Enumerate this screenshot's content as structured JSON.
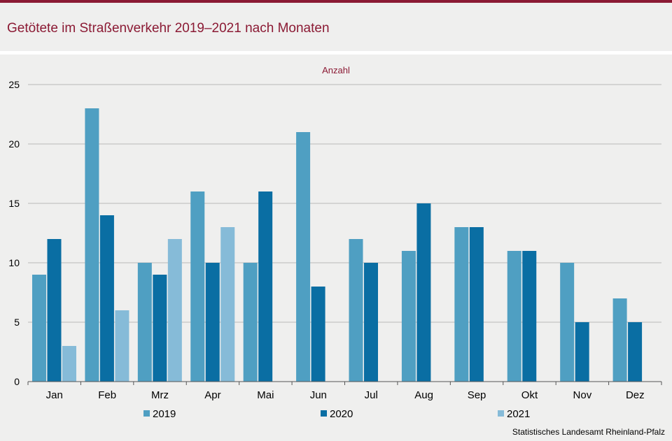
{
  "header": {
    "title": "Getötete im Straßenverkehr 2019–2021 nach Monaten"
  },
  "footer": {
    "source": "Statistisches Landesamt Rheinland-Pfalz"
  },
  "colors": {
    "accent": "#8b1a34",
    "series_2019": "#4f9fc2",
    "series_2020": "#0a6ea3",
    "series_2021": "#86bbd8"
  },
  "chart_data": {
    "type": "bar",
    "title": "Getötete im Straßenverkehr 2019–2021 nach Monaten",
    "ylabel": "Anzahl",
    "xlabel": "",
    "ylim": [
      0,
      25
    ],
    "yticks": [
      0,
      5,
      10,
      15,
      20,
      25
    ],
    "grid": true,
    "legend": "bottom",
    "categories": [
      "Jan",
      "Feb",
      "Mrz",
      "Apr",
      "Mai",
      "Jun",
      "Jul",
      "Aug",
      "Sep",
      "Okt",
      "Nov",
      "Dez"
    ],
    "series": [
      {
        "name": "2019",
        "color": "#4f9fc2",
        "values": [
          9,
          23,
          10,
          16,
          10,
          21,
          12,
          11,
          13,
          11,
          10,
          7
        ]
      },
      {
        "name": "2020",
        "color": "#0a6ea3",
        "values": [
          12,
          14,
          9,
          10,
          16,
          8,
          10,
          15,
          13,
          11,
          5,
          5
        ]
      },
      {
        "name": "2021",
        "color": "#86bbd8",
        "values": [
          3,
          6,
          12,
          13,
          null,
          null,
          null,
          null,
          null,
          null,
          null,
          null
        ]
      }
    ]
  }
}
